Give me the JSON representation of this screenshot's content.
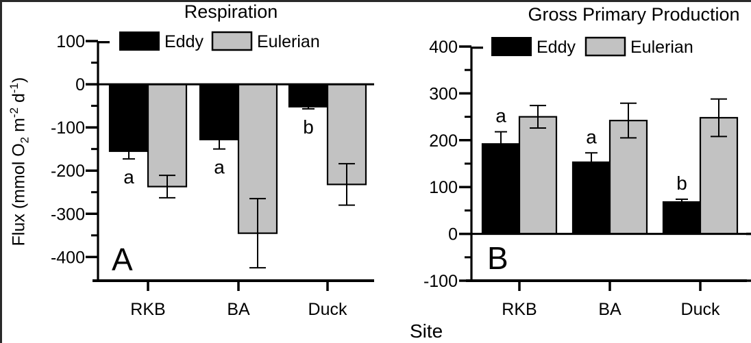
{
  "figure": {
    "background": "#ffffff",
    "border_color": "#2a2a2a",
    "axis_color": "#000000",
    "xlabel": "Site",
    "ylabel_parts": {
      "p1": "Flux (mmol O",
      "p2": "2",
      "p3": " m",
      "p4": "-2",
      "p5": " d",
      "p6": "-1",
      "p7": ")"
    }
  },
  "legend": {
    "items": [
      {
        "label": "Eddy",
        "color": "#000000"
      },
      {
        "label": "Eulerian",
        "color": "#c2c2c2"
      }
    ]
  },
  "chart_data": [
    {
      "type": "bar",
      "panel_label": "A",
      "title": "Respiration",
      "xlabel": "Site",
      "ylabel": "Flux (mmol O2 m-2 d-1)",
      "categories": [
        "RKB",
        "BA",
        "Duck"
      ],
      "series": [
        {
          "name": "Eddy",
          "color": "#000000",
          "values": [
            -155,
            -128,
            -52
          ],
          "errors": [
            18,
            22,
            5
          ],
          "error_style": "one-sided"
        },
        {
          "name": "Eulerian",
          "color": "#c2c2c2",
          "values": [
            -237,
            -345,
            -232
          ],
          "errors": [
            26,
            80,
            48
          ],
          "error_style": "two-sided"
        }
      ],
      "sig_letters": [
        "a",
        "a",
        "b"
      ],
      "ylim": [
        -455,
        100
      ],
      "yticks_major": [
        100,
        0,
        -100,
        -200,
        -300,
        -400
      ],
      "yticks_minor": [
        50,
        -50,
        -150,
        -250,
        -350
      ],
      "zero_line": true,
      "grid": false,
      "legend_position": "top",
      "right_ticks": []
    },
    {
      "type": "bar",
      "panel_label": "B",
      "title": "Gross Primary Production",
      "xlabel": "Site",
      "ylabel": "Flux (mmol O2 m-2 d-1)",
      "categories": [
        "RKB",
        "BA",
        "Duck"
      ],
      "series": [
        {
          "name": "Eddy",
          "color": "#000000",
          "values": [
            192,
            153,
            68
          ],
          "errors": [
            26,
            20,
            6
          ],
          "error_style": "one-sided"
        },
        {
          "name": "Eulerian",
          "color": "#c2c2c2",
          "values": [
            250,
            242,
            248
          ],
          "errors": [
            24,
            37,
            40
          ],
          "error_style": "two-sided"
        }
      ],
      "sig_letters": [
        "a",
        "a",
        "b"
      ],
      "ylim": [
        -100,
        400
      ],
      "yticks_major": [
        400,
        300,
        200,
        100,
        0,
        -100
      ],
      "yticks_minor": [
        350,
        250,
        150,
        50,
        -50
      ],
      "zero_line": true,
      "grid": false,
      "legend_position": "top",
      "right_ticks": [
        0,
        -100
      ]
    }
  ]
}
